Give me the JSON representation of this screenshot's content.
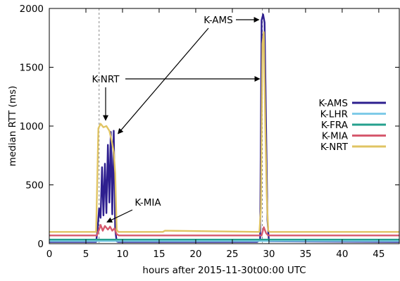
{
  "chart_data": {
    "type": "line",
    "title": "",
    "xlabel": "hours after 2015-11-30t00:00 UTC",
    "ylabel": "median RTT (ms)",
    "xlim": [
      0,
      47.8
    ],
    "ylim": [
      0,
      2000
    ],
    "xticks": [
      0,
      5,
      10,
      15,
      20,
      25,
      30,
      35,
      40,
      45
    ],
    "yticks": [
      0,
      500,
      1000,
      1500,
      2000
    ],
    "grid": false,
    "legend_position": "right",
    "event_markers_x": [
      6.8,
      29.1
    ],
    "series": [
      {
        "name": "K-AMS",
        "color": "#2e1f8f",
        "x": [
          0,
          6.4,
          6.6,
          6.8,
          7.0,
          7.2,
          7.4,
          7.6,
          7.8,
          8.0,
          8.2,
          8.4,
          8.6,
          8.8,
          9.0,
          9.2,
          9.4,
          28.4,
          28.8,
          29.0,
          29.2,
          29.4,
          29.6,
          29.8,
          30.0,
          47.8
        ],
        "y": [
          15,
          15,
          120,
          300,
          220,
          650,
          240,
          680,
          260,
          840,
          350,
          950,
          250,
          960,
          120,
          20,
          15,
          15,
          30,
          1900,
          1950,
          1880,
          1000,
          200,
          20,
          15
        ]
      },
      {
        "name": "K-LHR",
        "color": "#7fcbe8",
        "x": [
          0,
          47.8
        ],
        "y": [
          22,
          22
        ]
      },
      {
        "name": "K-FRA",
        "color": "#25a08e",
        "x": [
          0,
          47.8
        ],
        "y": [
          35,
          35
        ]
      },
      {
        "name": "K-MIA",
        "color": "#d65a6e",
        "x": [
          0,
          6.5,
          6.8,
          7.0,
          7.3,
          7.6,
          8.0,
          8.3,
          8.6,
          8.9,
          9.2,
          9.5,
          29.0,
          29.3,
          29.6,
          29.9,
          47.8
        ],
        "y": [
          70,
          70,
          120,
          160,
          110,
          150,
          120,
          145,
          110,
          130,
          80,
          70,
          70,
          140,
          90,
          70,
          70
        ]
      },
      {
        "name": "K-NRT",
        "color": "#e0c463",
        "x": [
          0,
          6.4,
          6.7,
          7.0,
          7.4,
          7.8,
          8.2,
          8.5,
          8.8,
          9.0,
          9.2,
          9.4,
          9.6,
          15.5,
          15.8,
          28.7,
          28.9,
          29.1,
          29.3,
          29.5,
          29.7,
          29.9,
          30.1,
          47.8
        ],
        "y": [
          100,
          100,
          980,
          1020,
          990,
          1000,
          960,
          880,
          780,
          600,
          120,
          100,
          100,
          100,
          110,
          100,
          300,
          1700,
          1800,
          1000,
          400,
          110,
          100,
          100
        ]
      }
    ],
    "annotations": [
      {
        "text": "K-AMS",
        "target_x": 29.1,
        "target_y": 1935
      },
      {
        "text": "K-NRT",
        "targets": [
          [
            7.2,
            1020
          ],
          [
            28.9,
            1400
          ]
        ]
      },
      {
        "text": "K-AMS",
        "target_x": 9.2,
        "target_y": 960
      },
      {
        "text": "K-MIA",
        "target_x": 7.6,
        "target_y": 160
      }
    ]
  }
}
